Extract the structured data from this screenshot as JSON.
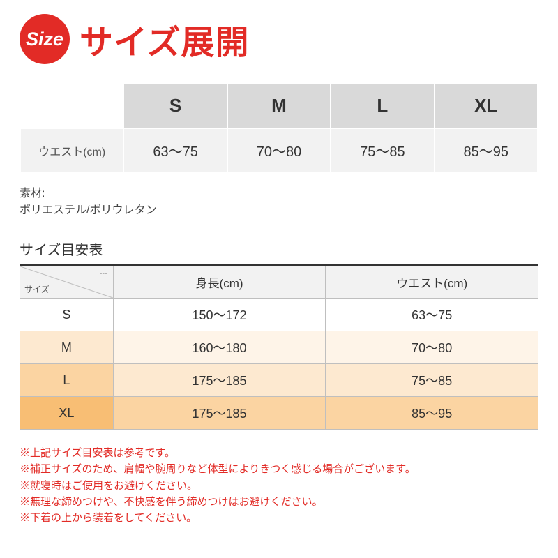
{
  "header": {
    "badge": "Size",
    "title": "サイズ展開"
  },
  "table1": {
    "row_label": "ウエスト(cm)",
    "columns": [
      "S",
      "M",
      "L",
      "XL"
    ],
    "values": [
      "63〜75",
      "70〜80",
      "75〜85",
      "85〜95"
    ],
    "header_bg": "#d9d9d9",
    "data_bg": "#f2f2f2",
    "border_color": "#ffffff",
    "header_fontsize": 26,
    "data_fontsize": 20
  },
  "material": {
    "label": "素材:",
    "value": "ポリエステル/ポリウレタン"
  },
  "table2": {
    "heading": "サイズ目安表",
    "corner_top": "---",
    "corner_bottom": "サイズ",
    "columns": [
      "身長(cm)",
      "ウエスト(cm)"
    ],
    "rows": [
      {
        "size": "S",
        "height": "150〜172",
        "waist": "63〜75",
        "bg_size": "#ffffff",
        "bg_data": "#ffffff"
      },
      {
        "size": "M",
        "height": "160〜180",
        "waist": "70〜80",
        "bg_size": "#fde9d0",
        "bg_data": "#fef4e8"
      },
      {
        "size": "L",
        "height": "175〜185",
        "waist": "75〜85",
        "bg_size": "#fbd4a2",
        "bg_data": "#fde9d0"
      },
      {
        "size": "XL",
        "height": "175〜185",
        "waist": "85〜95",
        "bg_size": "#f8be74",
        "bg_data": "#fbd4a2"
      }
    ],
    "header_bg": "#f2f2f2",
    "border_color": "#bfbfbf",
    "fontsize": 18
  },
  "notes": {
    "color": "#e22b26",
    "lines": [
      "※上記サイズ目安表は参考です。",
      "※補正サイズのため、肩幅や腕周りなど体型によりきつく感じる場合がございます。",
      "※就寝時はご使用をお避けください。",
      "※無理な締めつけや、不快感を伴う締めつけはお避けください。",
      "※下着の上から装着をしてください。"
    ]
  },
  "colors": {
    "accent": "#e22b26",
    "text": "#333333",
    "background": "#ffffff"
  }
}
